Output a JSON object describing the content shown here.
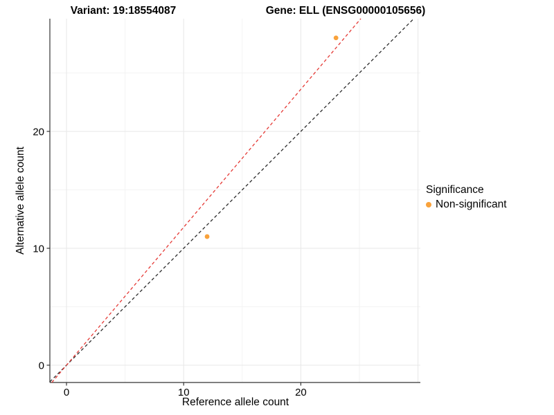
{
  "chart_data": {
    "type": "scatter",
    "title_left": "Variant: 19:18554087",
    "title_right": "Gene: ELL (ENSG00000105656)",
    "xlabel": "Reference allele count",
    "ylabel": "Alternative allele count",
    "xlim": [
      -1.42,
      30.2
    ],
    "ylim": [
      -1.48,
      29.64
    ],
    "x_ticks": [
      0,
      10,
      20
    ],
    "y_ticks": [
      0,
      10,
      20
    ],
    "x_grid_major": [
      0,
      10,
      20,
      30
    ],
    "x_grid_minor": [
      5,
      15,
      25
    ],
    "y_grid_major": [
      0,
      10,
      20
    ],
    "y_grid_minor": [
      5,
      15,
      25
    ],
    "grid": true,
    "points": [
      {
        "x": 12,
        "y": 11,
        "series": "Non-significant"
      },
      {
        "x": 23,
        "y": 28,
        "series": "Non-significant"
      }
    ],
    "point_color": "#F9A23B",
    "point_radius": 3.4,
    "lines": [
      {
        "name": "identity-line",
        "slope": 1,
        "intercept": 0,
        "style": "dashed",
        "color": "#2b2b2b"
      },
      {
        "name": "allelic-ratio-line",
        "slope": 1.18,
        "intercept": 0,
        "style": "dashed",
        "color": "#E53935"
      }
    ],
    "legend_position": "right",
    "legend": {
      "title": "Significance",
      "items": [
        {
          "label": "Non-significant",
          "color": "#F9A23B"
        }
      ]
    },
    "colors": {
      "grid_major": "#E7E7E7",
      "grid_minor": "#F2F2F2",
      "axis_line": "#333333",
      "tick_mark": "#333333",
      "text": "#000000",
      "background": "#FFFFFF"
    }
  }
}
